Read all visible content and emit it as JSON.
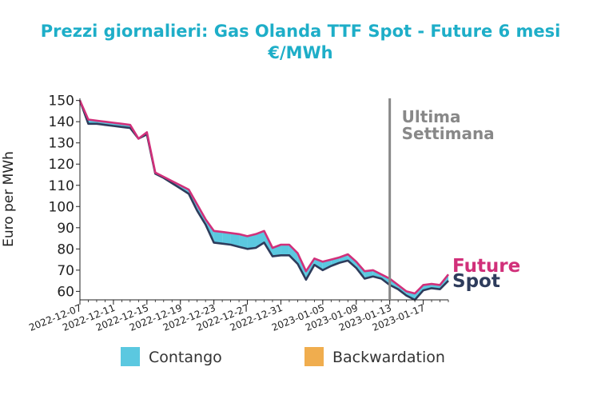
{
  "title_line1": "Prezzi giornalieri: Gas Olanda TTF Spot - Future 6 mesi",
  "title_line2": "€/MWh",
  "colors": {
    "title": "#1eaec8",
    "future": "#d1307a",
    "spot": "#2e3c5c",
    "contango": "#5bc8e0",
    "backwardation": "#f0ad4e",
    "marker": "#888888"
  },
  "chart_data": {
    "type": "line",
    "ylabel": "Euro per MWh",
    "ylim": [
      56,
      151
    ],
    "yticks": [
      60,
      70,
      80,
      90,
      100,
      110,
      120,
      130,
      140,
      150
    ],
    "x_start": "2022-12-07",
    "x_end": "2023-01-20",
    "xticks": [
      "2022-12-07",
      "2022-12-11",
      "2022-12-15",
      "2022-12-19",
      "2022-12-23",
      "2022-12-27",
      "2022-12-31",
      "2023-01-05",
      "2023-01-09",
      "2023-01-13",
      "2023-01-17"
    ],
    "dates": [
      "2022-12-07",
      "2022-12-08",
      "2022-12-09",
      "2022-12-10",
      "2022-12-11",
      "2022-12-12",
      "2022-12-13",
      "2022-12-14",
      "2022-12-15",
      "2022-12-16",
      "2022-12-17",
      "2022-12-18",
      "2022-12-19",
      "2022-12-20",
      "2022-12-21",
      "2022-12-22",
      "2022-12-23",
      "2022-12-24",
      "2022-12-25",
      "2022-12-26",
      "2022-12-27",
      "2022-12-28",
      "2022-12-29",
      "2022-12-30",
      "2022-12-31",
      "2023-01-01",
      "2023-01-02",
      "2023-01-03",
      "2023-01-04",
      "2023-01-05",
      "2023-01-06",
      "2023-01-07",
      "2023-01-08",
      "2023-01-09",
      "2023-01-10",
      "2023-01-11",
      "2023-01-12",
      "2023-01-13",
      "2023-01-14",
      "2023-01-15",
      "2023-01-16",
      "2023-01-17",
      "2023-01-18",
      "2023-01-19",
      "2023-01-20"
    ],
    "series": [
      {
        "name": "Future",
        "values": [
          150,
          141,
          140.5,
          140,
          139.5,
          139,
          138.5,
          132,
          135,
          116,
          114,
          112,
          110,
          108,
          101,
          94,
          88.5,
          88,
          87.5,
          87,
          86,
          87,
          88.5,
          80.5,
          82,
          82,
          78,
          69.5,
          75.5,
          74,
          75,
          76,
          77.5,
          74,
          69.5,
          70,
          68,
          66,
          63,
          60,
          59,
          63,
          63.5,
          63,
          68
        ]
      },
      {
        "name": "Spot",
        "values": [
          150,
          139,
          139,
          138.5,
          138,
          137.5,
          137,
          132,
          134,
          115.5,
          113.5,
          111,
          108.5,
          106,
          98,
          91.5,
          83,
          82.5,
          82,
          81,
          80,
          80.5,
          83,
          76.5,
          77,
          77,
          73,
          65.5,
          72.5,
          70,
          72,
          73.5,
          74.5,
          71,
          66,
          67,
          66,
          63,
          61,
          58,
          56,
          60.5,
          61.5,
          61,
          65
        ]
      }
    ],
    "annotation": {
      "date": "2023-01-13",
      "text_line1": "Ultima",
      "text_line2": "Settimana"
    },
    "end_labels": {
      "future": "Future",
      "spot": "Spot"
    },
    "legend": [
      {
        "label": "Contango",
        "color": "#5bc8e0"
      },
      {
        "label": "Backwardation",
        "color": "#f0ad4e"
      }
    ],
    "legend_position": "bottom"
  }
}
